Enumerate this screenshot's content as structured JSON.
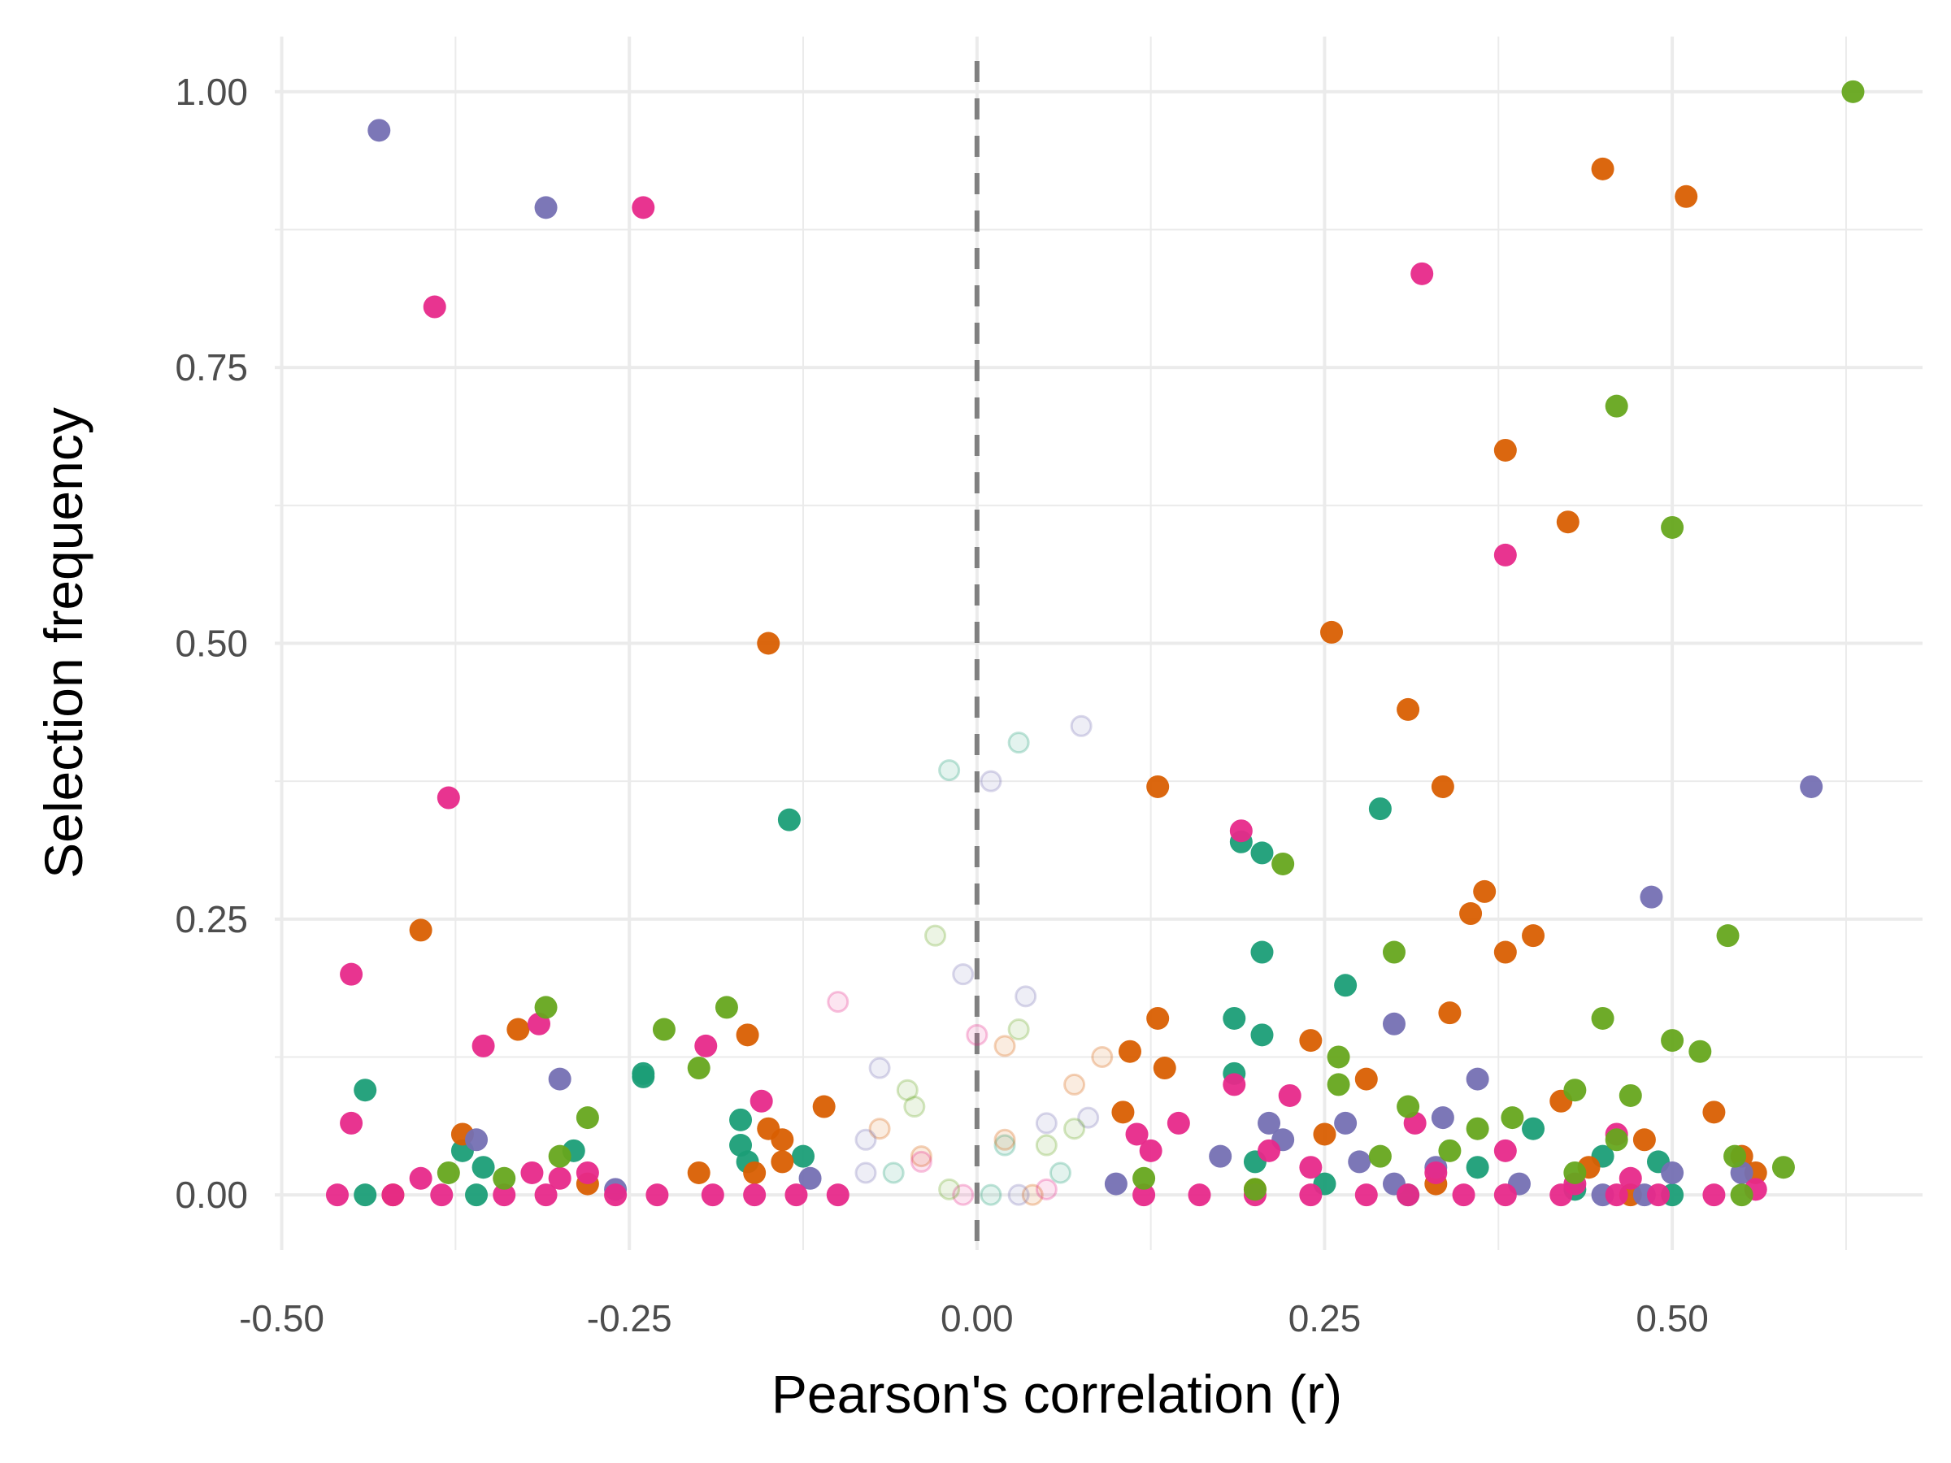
{
  "chart_data": {
    "type": "scatter",
    "title": "",
    "xlabel": "Pearson's correlation (r)",
    "ylabel": "Selection frequency",
    "xlim": [
      -0.505,
      0.68
    ],
    "ylim": [
      -0.05,
      1.05
    ],
    "x_ticks": [
      -0.5,
      -0.25,
      0.0,
      0.25,
      0.5
    ],
    "x_tick_labels": [
      "-0.50",
      "-0.25",
      "0.00",
      "0.25",
      "0.50"
    ],
    "y_ticks": [
      0.0,
      0.25,
      0.5,
      0.75,
      1.0
    ],
    "y_tick_labels": [
      "0.00",
      "0.25",
      "0.50",
      "0.75",
      "1.00"
    ],
    "grid": true,
    "legend": "none",
    "reference_line": {
      "x": 0,
      "style": "dashed",
      "color": "#808080"
    },
    "series": [
      {
        "color": "#1B9E77",
        "points": [
          [
            -0.44,
            0.095
          ],
          [
            -0.37,
            0.04
          ],
          [
            -0.355,
            0.025
          ],
          [
            -0.29,
            0.04
          ],
          [
            -0.24,
            0.11
          ],
          [
            -0.24,
            0.107
          ],
          [
            -0.17,
            0.068
          ],
          [
            -0.165,
            0.03
          ],
          [
            -0.17,
            0.045
          ],
          [
            -0.125,
            0.035
          ],
          [
            -0.135,
            0.34
          ],
          [
            0.19,
            0.32
          ],
          [
            0.205,
            0.31
          ],
          [
            0.205,
            0.22
          ],
          [
            0.185,
            0.16
          ],
          [
            0.185,
            0.11
          ],
          [
            0.205,
            0.145
          ],
          [
            0.265,
            0.19
          ],
          [
            0.29,
            0.35
          ],
          [
            0.4,
            0.06
          ],
          [
            0.45,
            0.035
          ],
          [
            0.36,
            0.025
          ],
          [
            0.49,
            0.03
          ],
          [
            0.5,
            0.0
          ],
          [
            0.2,
            0.03
          ],
          [
            0.25,
            0.01
          ],
          [
            0.43,
            0.005
          ],
          [
            -0.44,
            0.0
          ],
          [
            -0.36,
            0.0
          ],
          [
            0.31,
            0.0
          ],
          [
            -0.02,
            0.385
          ],
          [
            0.03,
            0.41
          ],
          [
            0.02,
            0.045
          ],
          [
            -0.06,
            0.02
          ],
          [
            0.06,
            0.02
          ],
          [
            0.01,
            0.0
          ]
        ],
        "faint_from": 30
      },
      {
        "color": "#D95F02",
        "points": [
          [
            -0.4,
            0.24
          ],
          [
            -0.33,
            0.15
          ],
          [
            -0.37,
            0.055
          ],
          [
            -0.15,
            0.5
          ],
          [
            -0.165,
            0.145
          ],
          [
            -0.11,
            0.08
          ],
          [
            -0.15,
            0.06
          ],
          [
            -0.14,
            0.05
          ],
          [
            -0.16,
            0.02
          ],
          [
            -0.2,
            0.02
          ],
          [
            -0.14,
            0.03
          ],
          [
            0.13,
            0.37
          ],
          [
            0.11,
            0.13
          ],
          [
            0.13,
            0.16
          ],
          [
            0.135,
            0.115
          ],
          [
            0.105,
            0.075
          ],
          [
            0.255,
            0.51
          ],
          [
            0.31,
            0.44
          ],
          [
            0.335,
            0.37
          ],
          [
            0.365,
            0.275
          ],
          [
            0.355,
            0.255
          ],
          [
            0.38,
            0.675
          ],
          [
            0.425,
            0.61
          ],
          [
            0.45,
            0.93
          ],
          [
            0.51,
            0.905
          ],
          [
            0.38,
            0.22
          ],
          [
            0.4,
            0.235
          ],
          [
            0.34,
            0.165
          ],
          [
            0.24,
            0.14
          ],
          [
            0.28,
            0.105
          ],
          [
            0.25,
            0.055
          ],
          [
            0.42,
            0.085
          ],
          [
            0.53,
            0.075
          ],
          [
            0.48,
            0.05
          ],
          [
            0.55,
            0.035
          ],
          [
            0.56,
            0.02
          ],
          [
            0.44,
            0.025
          ],
          [
            0.2,
            0.005
          ],
          [
            0.33,
            0.01
          ],
          [
            0.47,
            0.0
          ],
          [
            -0.28,
            0.01
          ],
          [
            -0.42,
            0.0
          ],
          [
            0.09,
            0.125
          ],
          [
            0.07,
            0.1
          ],
          [
            0.02,
            0.135
          ],
          [
            0.02,
            0.05
          ],
          [
            -0.07,
            0.06
          ],
          [
            -0.04,
            0.035
          ],
          [
            0.04,
            0.0
          ]
        ],
        "faint_from": 42
      },
      {
        "color": "#7570B3",
        "points": [
          [
            -0.43,
            0.965
          ],
          [
            -0.31,
            0.895
          ],
          [
            -0.36,
            0.05
          ],
          [
            -0.3,
            0.105
          ],
          [
            -0.26,
            0.005
          ],
          [
            -0.12,
            0.015
          ],
          [
            0.6,
            0.37
          ],
          [
            0.485,
            0.27
          ],
          [
            0.3,
            0.155
          ],
          [
            0.36,
            0.105
          ],
          [
            0.335,
            0.07
          ],
          [
            0.21,
            0.065
          ],
          [
            0.265,
            0.065
          ],
          [
            0.22,
            0.05
          ],
          [
            0.175,
            0.035
          ],
          [
            0.275,
            0.03
          ],
          [
            0.33,
            0.025
          ],
          [
            0.5,
            0.02
          ],
          [
            0.55,
            0.02
          ],
          [
            0.48,
            0.0
          ],
          [
            0.45,
            0.0
          ],
          [
            0.39,
            0.01
          ],
          [
            0.3,
            0.01
          ],
          [
            0.1,
            0.01
          ],
          [
            0.075,
            0.425
          ],
          [
            0.01,
            0.375
          ],
          [
            -0.01,
            0.2
          ],
          [
            0.035,
            0.18
          ],
          [
            -0.07,
            0.115
          ],
          [
            0.08,
            0.07
          ],
          [
            0.05,
            0.065
          ],
          [
            -0.08,
            0.05
          ],
          [
            0.03,
            0.0
          ],
          [
            -0.08,
            0.02
          ]
        ],
        "faint_from": 24
      },
      {
        "color": "#E7298A",
        "points": [
          [
            -0.39,
            0.805
          ],
          [
            -0.24,
            0.895
          ],
          [
            0.32,
            0.835
          ],
          [
            0.38,
            0.58
          ],
          [
            -0.38,
            0.36
          ],
          [
            -0.45,
            0.2
          ],
          [
            -0.355,
            0.135
          ],
          [
            -0.315,
            0.155
          ],
          [
            -0.195,
            0.135
          ],
          [
            -0.155,
            0.085
          ],
          [
            -0.45,
            0.065
          ],
          [
            0.19,
            0.33
          ],
          [
            0.185,
            0.1
          ],
          [
            0.225,
            0.09
          ],
          [
            0.145,
            0.065
          ],
          [
            0.115,
            0.055
          ],
          [
            0.125,
            0.04
          ],
          [
            0.21,
            0.04
          ],
          [
            0.315,
            0.065
          ],
          [
            0.38,
            0.04
          ],
          [
            0.46,
            0.055
          ],
          [
            0.47,
            0.015
          ],
          [
            0.56,
            0.005
          ],
          [
            -0.4,
            0.015
          ],
          [
            -0.32,
            0.02
          ],
          [
            -0.3,
            0.015
          ],
          [
            -0.28,
            0.02
          ],
          [
            0.24,
            0.025
          ],
          [
            0.33,
            0.02
          ],
          [
            0.43,
            0.01
          ],
          [
            -0.46,
            0.0
          ],
          [
            -0.42,
            0.0
          ],
          [
            -0.385,
            0.0
          ],
          [
            -0.34,
            0.0
          ],
          [
            -0.31,
            0.0
          ],
          [
            -0.26,
            0.0
          ],
          [
            -0.23,
            0.0
          ],
          [
            -0.19,
            0.0
          ],
          [
            -0.16,
            0.0
          ],
          [
            -0.13,
            0.0
          ],
          [
            -0.1,
            0.0
          ],
          [
            0.12,
            0.0
          ],
          [
            0.16,
            0.0
          ],
          [
            0.2,
            0.0
          ],
          [
            0.24,
            0.0
          ],
          [
            0.28,
            0.0
          ],
          [
            0.31,
            0.0
          ],
          [
            0.35,
            0.0
          ],
          [
            0.38,
            0.0
          ],
          [
            0.42,
            0.0
          ],
          [
            0.46,
            0.0
          ],
          [
            0.49,
            0.0
          ],
          [
            0.53,
            0.0
          ],
          [
            -0.1,
            0.175
          ],
          [
            0.0,
            0.145
          ],
          [
            -0.04,
            0.03
          ],
          [
            0.05,
            0.005
          ],
          [
            -0.01,
            0.0
          ]
        ],
        "faint_from": 53
      },
      {
        "color": "#66A61E",
        "points": [
          [
            0.63,
            1.0
          ],
          [
            0.46,
            0.715
          ],
          [
            0.5,
            0.605
          ],
          [
            0.22,
            0.3
          ],
          [
            0.54,
            0.235
          ],
          [
            0.3,
            0.22
          ],
          [
            0.45,
            0.16
          ],
          [
            0.5,
            0.14
          ],
          [
            0.52,
            0.13
          ],
          [
            0.26,
            0.125
          ],
          [
            0.26,
            0.1
          ],
          [
            0.47,
            0.09
          ],
          [
            0.43,
            0.095
          ],
          [
            0.31,
            0.08
          ],
          [
            0.385,
            0.07
          ],
          [
            0.36,
            0.06
          ],
          [
            0.46,
            0.05
          ],
          [
            0.34,
            0.04
          ],
          [
            0.58,
            0.025
          ],
          [
            0.545,
            0.035
          ],
          [
            0.43,
            0.02
          ],
          [
            0.29,
            0.035
          ],
          [
            -0.31,
            0.17
          ],
          [
            -0.18,
            0.17
          ],
          [
            -0.225,
            0.15
          ],
          [
            -0.2,
            0.115
          ],
          [
            -0.28,
            0.07
          ],
          [
            -0.3,
            0.035
          ],
          [
            -0.38,
            0.02
          ],
          [
            -0.34,
            0.015
          ],
          [
            0.55,
            0.0
          ],
          [
            0.12,
            0.015
          ],
          [
            0.2,
            0.005
          ],
          [
            -0.03,
            0.235
          ],
          [
            0.03,
            0.15
          ],
          [
            -0.05,
            0.095
          ],
          [
            -0.045,
            0.08
          ],
          [
            0.07,
            0.06
          ],
          [
            0.05,
            0.045
          ],
          [
            -0.02,
            0.005
          ]
        ],
        "faint_from": 33
      }
    ]
  }
}
